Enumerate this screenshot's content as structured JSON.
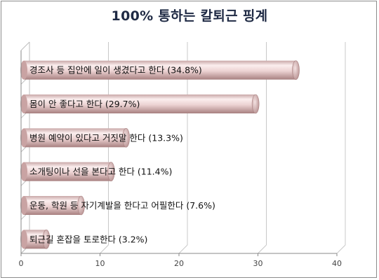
{
  "chart_data": {
    "type": "bar",
    "orientation": "horizontal",
    "title": "100% 통하는 칼퇴근 핑계",
    "categories": [
      "경조사 등 집안에 일이 생겼다고 한다",
      "몸이 안 좋다고 한다",
      "병원 예약이 있다고 거짓말 한다",
      "소개팅이나 선을 본다고 한다",
      "운동, 학원 등 자기계발을 한다고 어필한다",
      "퇴근길 혼잡을 토로한다"
    ],
    "values": [
      34.8,
      29.7,
      13.3,
      11.4,
      7.6,
      3.2
    ],
    "labels": [
      "경조사 등 집안에 일이 생겼다고 한다 (34.8%)",
      "몸이 안 좋다고 한다 (29.7%)",
      "병원 예약이 있다고 거짓말 한다 (13.3%)",
      "소개팅이나 선을 본다고 한다 (11.4%)",
      "운동, 학원 등 자기계발을 한다고 어필한다 (7.6%)",
      "퇴근길 혼잡을 토로한다 (3.2%)"
    ],
    "xlim": [
      0,
      40
    ],
    "xticks": [
      "0",
      "10",
      "20",
      "30",
      "40"
    ],
    "grid": true,
    "bar_color": "#e8c9c9",
    "xlabel": "",
    "ylabel": ""
  }
}
